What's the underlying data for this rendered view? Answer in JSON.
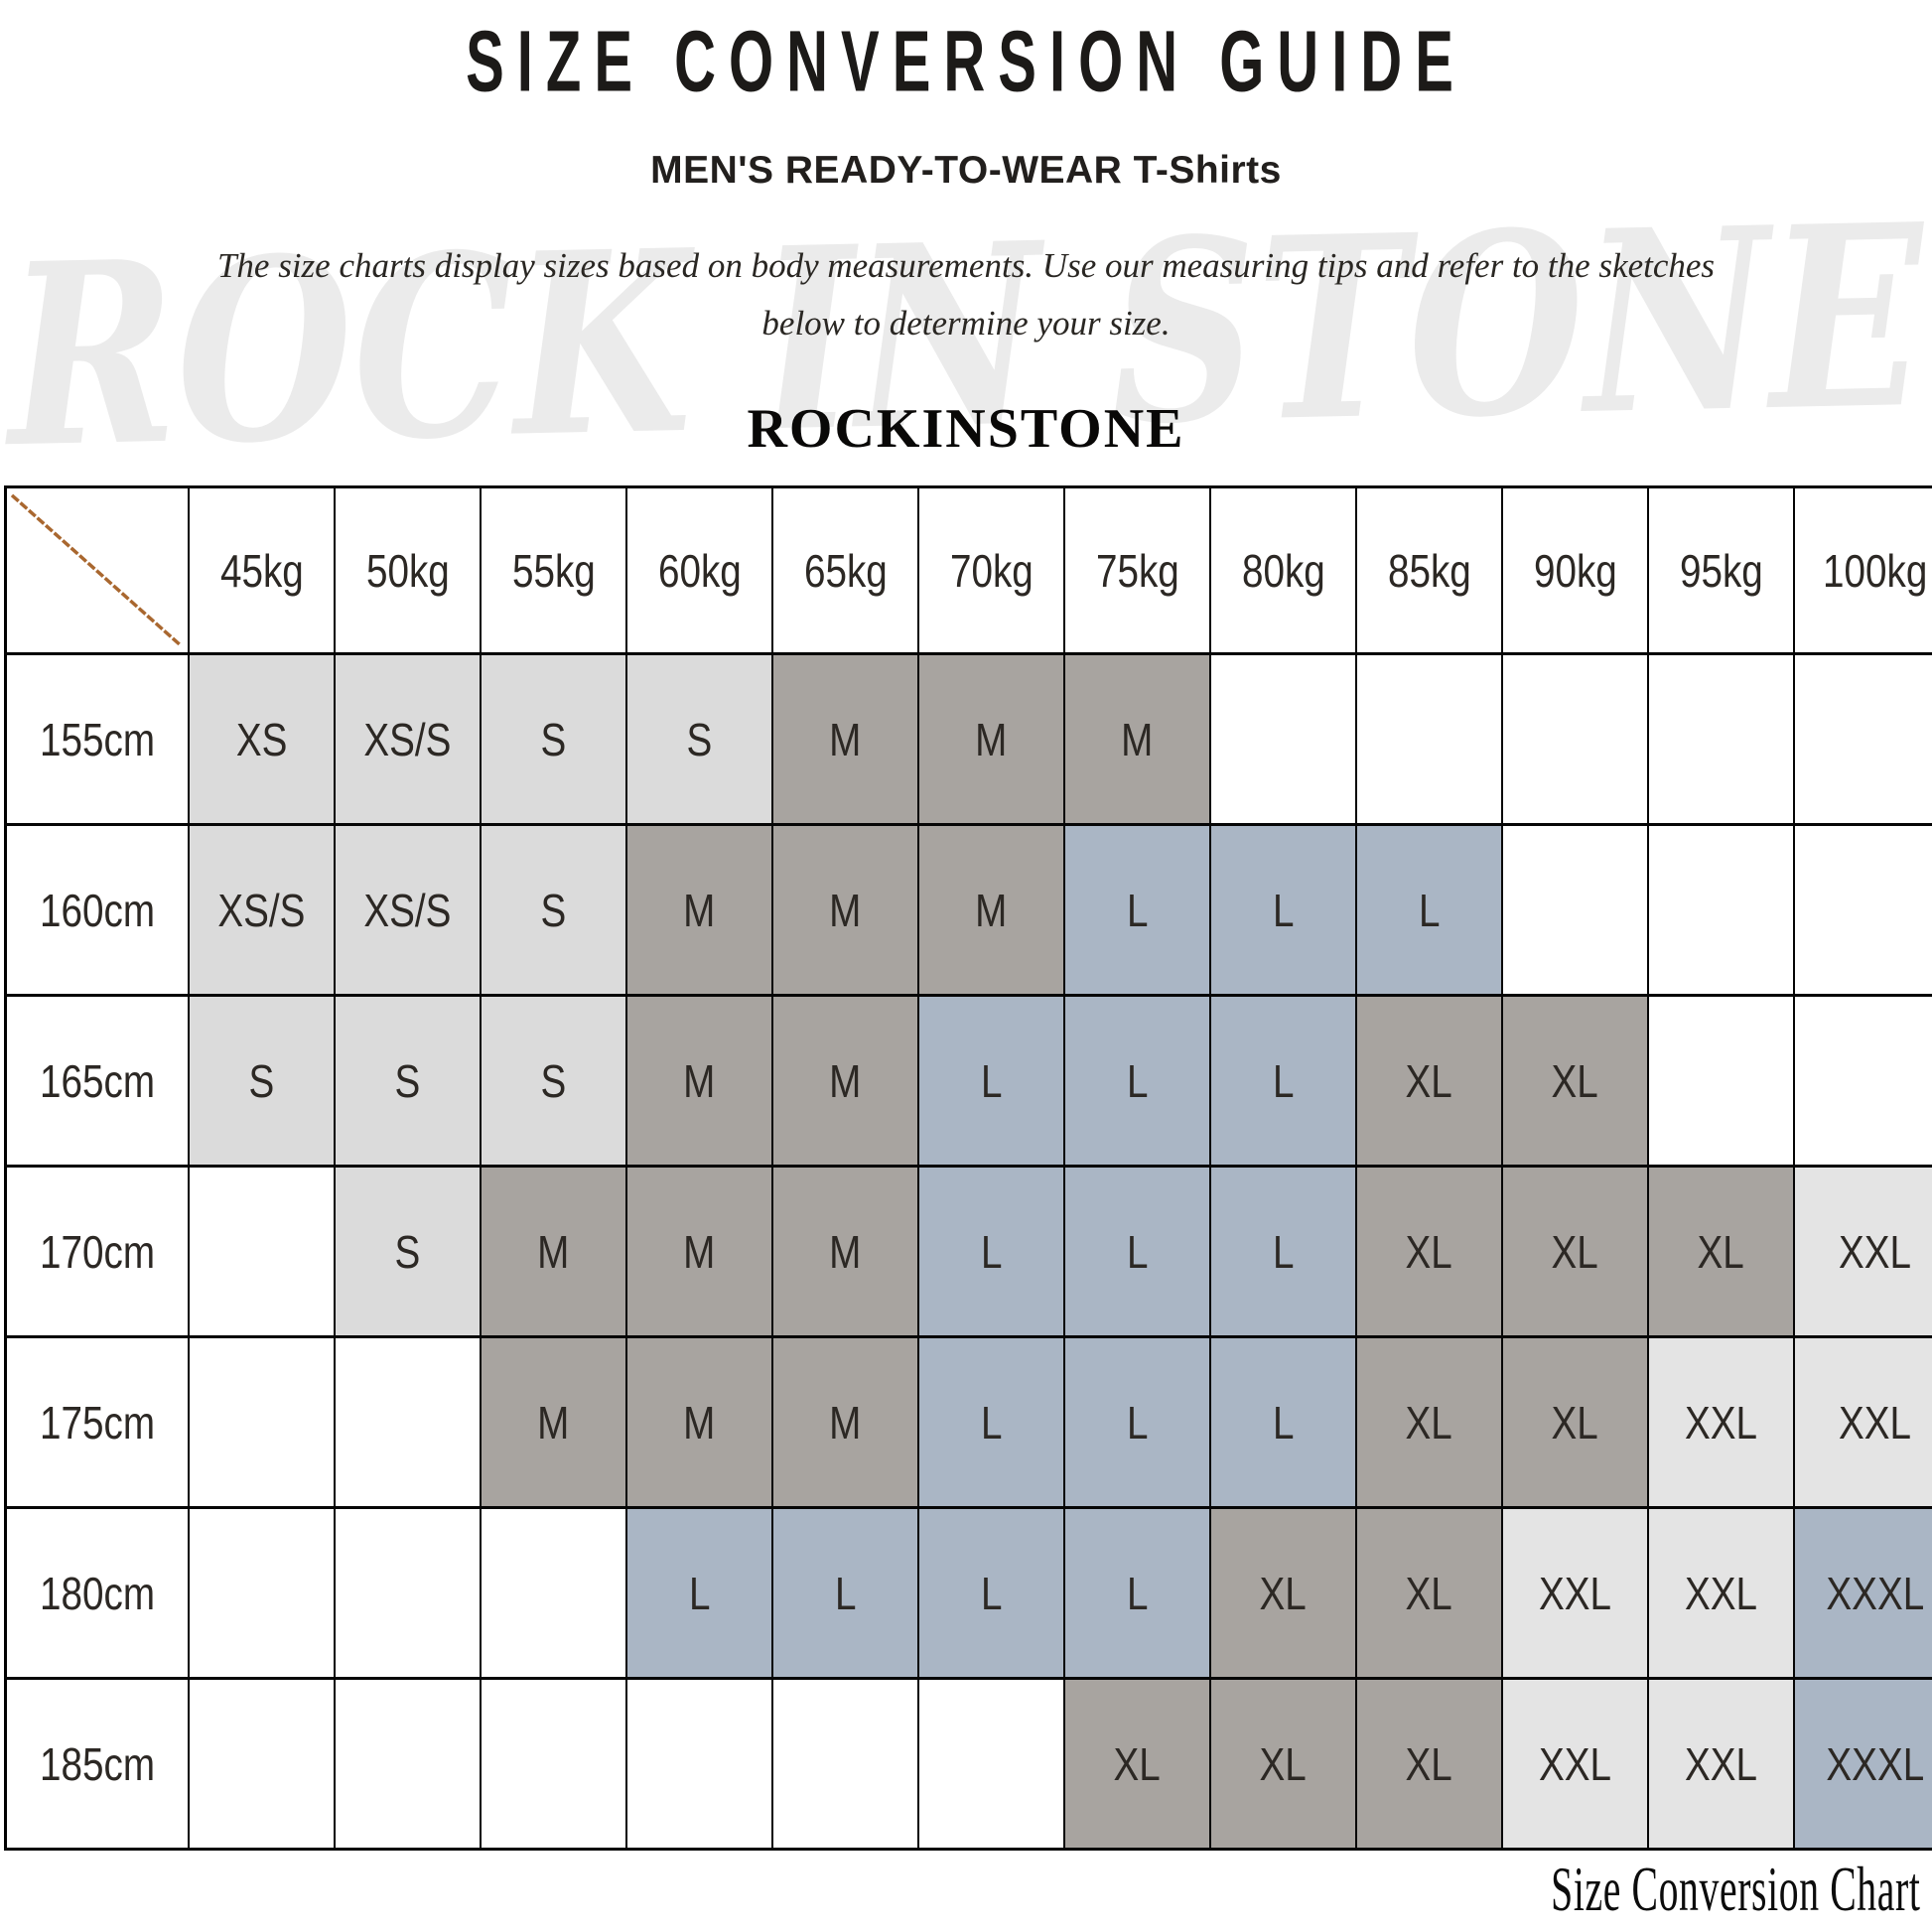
{
  "page": {
    "title": "SIZE CONVERSION GUIDE",
    "subtitle": "MEN'S READY-TO-WEAR T-Shirts",
    "description_line1": "The size charts display sizes based on body measurements. Use our measuring tips and refer to the sketches",
    "description_line2": "below to determine your size.",
    "brand": "ROCKINSTONE",
    "watermark_text": "ROCK IN STONE",
    "caption": "Size Conversion Chart"
  },
  "colors": {
    "cell_light": "#dbdbdb",
    "cell_lighter": "#e4e4e4",
    "cell_dark": "#a8a4a0",
    "cell_blue": "#aab6c5",
    "diagonal_line": "#a9672f",
    "watermark_gray": "#ebebeb",
    "border": "#000000"
  },
  "chart_data": {
    "type": "table",
    "title": "SIZE CONVERSION GUIDE",
    "column_axis": "body weight",
    "row_axis": "body height",
    "columns": [
      "45kg",
      "50kg",
      "55kg",
      "60kg",
      "65kg",
      "70kg",
      "75kg",
      "80kg",
      "85kg",
      "90kg",
      "95kg",
      "100kg"
    ],
    "tone_legend": {
      "light": "light gray cell",
      "lighter": "pale gray cell",
      "dark": "taupe gray cell",
      "blue": "steel blue cell"
    },
    "rows": [
      {
        "height": "155cm",
        "cells": [
          {
            "size": "XS",
            "tone": "light"
          },
          {
            "size": "XS/S",
            "tone": "light"
          },
          {
            "size": "S",
            "tone": "light"
          },
          {
            "size": "S",
            "tone": "light"
          },
          {
            "size": "M",
            "tone": "dark"
          },
          {
            "size": "M",
            "tone": "dark"
          },
          {
            "size": "M",
            "tone": "dark"
          },
          null,
          null,
          null,
          null,
          null
        ]
      },
      {
        "height": "160cm",
        "cells": [
          {
            "size": "XS/S",
            "tone": "light"
          },
          {
            "size": "XS/S",
            "tone": "light"
          },
          {
            "size": "S",
            "tone": "light"
          },
          {
            "size": "M",
            "tone": "dark"
          },
          {
            "size": "M",
            "tone": "dark"
          },
          {
            "size": "M",
            "tone": "dark"
          },
          {
            "size": "L",
            "tone": "blue"
          },
          {
            "size": "L",
            "tone": "blue"
          },
          {
            "size": "L",
            "tone": "blue"
          },
          null,
          null,
          null
        ]
      },
      {
        "height": "165cm",
        "cells": [
          {
            "size": "S",
            "tone": "light"
          },
          {
            "size": "S",
            "tone": "light"
          },
          {
            "size": "S",
            "tone": "light"
          },
          {
            "size": "M",
            "tone": "dark"
          },
          {
            "size": "M",
            "tone": "dark"
          },
          {
            "size": "L",
            "tone": "blue"
          },
          {
            "size": "L",
            "tone": "blue"
          },
          {
            "size": "L",
            "tone": "blue"
          },
          {
            "size": "XL",
            "tone": "dark"
          },
          {
            "size": "XL",
            "tone": "dark"
          },
          null,
          null
        ]
      },
      {
        "height": "170cm",
        "cells": [
          null,
          {
            "size": "S",
            "tone": "light"
          },
          {
            "size": "M",
            "tone": "dark"
          },
          {
            "size": "M",
            "tone": "dark"
          },
          {
            "size": "M",
            "tone": "dark"
          },
          {
            "size": "L",
            "tone": "blue"
          },
          {
            "size": "L",
            "tone": "blue"
          },
          {
            "size": "L",
            "tone": "blue"
          },
          {
            "size": "XL",
            "tone": "dark"
          },
          {
            "size": "XL",
            "tone": "dark"
          },
          {
            "size": "XL",
            "tone": "dark"
          },
          {
            "size": "XXL",
            "tone": "lighter"
          }
        ]
      },
      {
        "height": "175cm",
        "cells": [
          null,
          null,
          {
            "size": "M",
            "tone": "dark"
          },
          {
            "size": "M",
            "tone": "dark"
          },
          {
            "size": "M",
            "tone": "dark"
          },
          {
            "size": "L",
            "tone": "blue"
          },
          {
            "size": "L",
            "tone": "blue"
          },
          {
            "size": "L",
            "tone": "blue"
          },
          {
            "size": "XL",
            "tone": "dark"
          },
          {
            "size": "XL",
            "tone": "dark"
          },
          {
            "size": "XXL",
            "tone": "lighter"
          },
          {
            "size": "XXL",
            "tone": "lighter"
          }
        ]
      },
      {
        "height": "180cm",
        "cells": [
          null,
          null,
          null,
          {
            "size": "L",
            "tone": "blue"
          },
          {
            "size": "L",
            "tone": "blue"
          },
          {
            "size": "L",
            "tone": "blue"
          },
          {
            "size": "L",
            "tone": "blue"
          },
          {
            "size": "XL",
            "tone": "dark"
          },
          {
            "size": "XL",
            "tone": "dark"
          },
          {
            "size": "XXL",
            "tone": "lighter"
          },
          {
            "size": "XXL",
            "tone": "lighter"
          },
          {
            "size": "XXXL",
            "tone": "blue"
          }
        ]
      },
      {
        "height": "185cm",
        "cells": [
          null,
          null,
          null,
          null,
          null,
          null,
          {
            "size": "XL",
            "tone": "dark"
          },
          {
            "size": "XL",
            "tone": "dark"
          },
          {
            "size": "XL",
            "tone": "dark"
          },
          {
            "size": "XXL",
            "tone": "lighter"
          },
          {
            "size": "XXL",
            "tone": "lighter"
          },
          {
            "size": "XXXL",
            "tone": "blue"
          }
        ]
      }
    ]
  }
}
